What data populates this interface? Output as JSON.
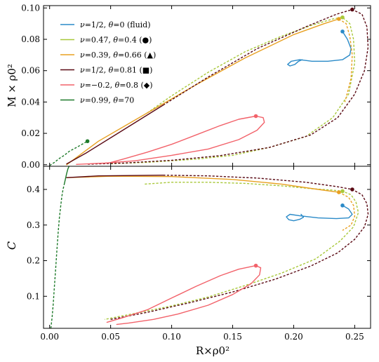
{
  "chart_data": [
    {
      "type": "line",
      "panel": "top",
      "ylabel": "M × ρ0²",
      "xlim": [
        -0.005,
        0.263
      ],
      "ylim": [
        -0.001,
        0.1015
      ],
      "yticks": [
        "0.00",
        "0.02",
        "0.04",
        "0.06",
        "0.08",
        "0.10"
      ],
      "ytick_values": [
        0.0,
        0.02,
        0.04,
        0.06,
        0.08,
        0.1
      ],
      "legend_position": "top-left",
      "series": [
        {
          "name": "ν=1/2, θ=0 (fluid)",
          "color": "#2a8ac8",
          "marker": {
            "x": 0.24,
            "y": 0.085
          },
          "solid": [
            [
              0.24,
              0.085
            ],
            [
              0.244,
              0.08
            ],
            [
              0.247,
              0.074
            ],
            [
              0.246,
              0.07
            ],
            [
              0.24,
              0.067
            ],
            [
              0.228,
              0.066
            ],
            [
              0.215,
              0.066
            ],
            [
              0.205,
              0.067
            ],
            [
              0.198,
              0.066
            ],
            [
              0.195,
              0.064
            ],
            [
              0.197,
              0.063
            ],
            [
              0.201,
              0.064
            ],
            [
              0.204,
              0.066
            ],
            [
              0.207,
              0.067
            ]
          ]
        },
        {
          "name": "ν=0.47, θ=0.4 (●)",
          "color": "#a8c83a",
          "marker": {
            "x": 0.24,
            "y": 0.094
          },
          "dashed": [
            [
              0.08,
              0.033
            ],
            [
              0.1,
              0.044
            ],
            [
              0.13,
              0.059
            ],
            [
              0.16,
              0.072
            ],
            [
              0.19,
              0.082
            ],
            [
              0.215,
              0.089
            ],
            [
              0.232,
              0.093
            ],
            [
              0.24,
              0.094
            ],
            [
              0.246,
              0.09
            ],
            [
              0.249,
              0.08
            ],
            [
              0.25,
              0.065
            ],
            [
              0.245,
              0.045
            ],
            [
              0.232,
              0.03
            ],
            [
              0.21,
              0.018
            ],
            [
              0.18,
              0.011
            ],
            [
              0.15,
              0.006
            ],
            [
              0.12,
              0.0035
            ],
            [
              0.08,
              0.0015
            ],
            [
              0.05,
              0.0006
            ]
          ]
        },
        {
          "name": "ν=0.39, θ=0.66 (▲)",
          "color": "#e8a020",
          "marker": {
            "x": 0.237,
            "y": 0.093
          },
          "dashed": [
            [
              0.237,
              0.093
            ],
            [
              0.243,
              0.09
            ],
            [
              0.246,
              0.082
            ],
            [
              0.248,
              0.07
            ],
            [
              0.247,
              0.055
            ],
            [
              0.242,
              0.04
            ]
          ],
          "solid": [
            [
              0.014,
              0.0
            ],
            [
              0.04,
              0.015
            ],
            [
              0.08,
              0.033
            ],
            [
              0.12,
              0.051
            ],
            [
              0.16,
              0.068
            ],
            [
              0.2,
              0.083
            ],
            [
              0.225,
              0.09
            ],
            [
              0.237,
              0.093
            ]
          ]
        },
        {
          "name": "ν=1/2, θ=0.81 (■)",
          "color": "#5a0a14",
          "marker": {
            "x": 0.248,
            "y": 0.099
          },
          "solid": [
            [
              0.014,
              0.0005
            ],
            [
              0.03,
              0.0075
            ],
            [
              0.06,
              0.022
            ],
            [
              0.093,
              0.038
            ]
          ],
          "dashed": [
            [
              0.093,
              0.038
            ],
            [
              0.13,
              0.056
            ],
            [
              0.17,
              0.074
            ],
            [
              0.21,
              0.088
            ],
            [
              0.235,
              0.096
            ],
            [
              0.248,
              0.099
            ],
            [
              0.256,
              0.096
            ],
            [
              0.26,
              0.088
            ],
            [
              0.261,
              0.075
            ],
            [
              0.258,
              0.06
            ],
            [
              0.25,
              0.045
            ],
            [
              0.236,
              0.03
            ],
            [
              0.214,
              0.019
            ],
            [
              0.18,
              0.011
            ],
            [
              0.14,
              0.0058
            ],
            [
              0.1,
              0.0028
            ],
            [
              0.06,
              0.001
            ],
            [
              0.03,
              0.0003
            ]
          ]
        },
        {
          "name": "ν=−0.2, θ=0.8 (◆)",
          "color": "#f2626a",
          "marker": {
            "x": 0.169,
            "y": 0.031
          },
          "solid": [
            [
              0.048,
              0.001
            ],
            [
              0.06,
              0.0035
            ],
            [
              0.08,
              0.008
            ],
            [
              0.1,
              0.013
            ],
            [
              0.12,
              0.019
            ],
            [
              0.14,
              0.025
            ],
            [
              0.155,
              0.029
            ],
            [
              0.169,
              0.031
            ],
            [
              0.175,
              0.03
            ],
            [
              0.176,
              0.027
            ],
            [
              0.17,
              0.022
            ],
            [
              0.155,
              0.016
            ],
            [
              0.13,
              0.01
            ],
            [
              0.1,
              0.006
            ],
            [
              0.07,
              0.0025
            ],
            [
              0.045,
              0.001
            ],
            [
              0.022,
              0.0002
            ]
          ]
        },
        {
          "name": "ν=0.99, θ=70",
          "color": "#1e7a2a",
          "marker": {
            "x": 0.031,
            "y": 0.015
          },
          "dashed": [
            [
              0.0,
              -0.0005
            ],
            [
              0.004,
              0.0015
            ],
            [
              0.008,
              0.004
            ],
            [
              0.012,
              0.006
            ],
            [
              0.016,
              0.0085
            ],
            [
              0.022,
              0.011
            ],
            [
              0.031,
              0.015
            ]
          ]
        }
      ],
      "legend_entries": [
        {
          "a": "ν",
          "b": "=1/2, ",
          "c": "θ",
          "d": "=0 (fluid)",
          "color": "#2a8ac8"
        },
        {
          "a": "ν",
          "b": "=0.47, ",
          "c": "θ",
          "d": "=0.4 (●)",
          "color": "#a8c83a"
        },
        {
          "a": "ν",
          "b": "=0.39, ",
          "c": "θ",
          "d": "=0.66 (▲)",
          "color": "#e8a020"
        },
        {
          "a": "ν",
          "b": "=1/2, ",
          "c": "θ",
          "d": "=0.81 (■)",
          "color": "#5a0a14"
        },
        {
          "a": "ν",
          "b": "=−0.2, ",
          "c": "θ",
          "d": "=0.8 (◆)",
          "color": "#f2626a"
        },
        {
          "a": "ν",
          "b": "=0.99, ",
          "c": "θ",
          "d": "=70",
          "color": "#1e7a2a"
        }
      ]
    },
    {
      "type": "line",
      "panel": "bottom",
      "ylabel": "C",
      "xlabel": "R×ρ0²",
      "xlim": [
        -0.005,
        0.263
      ],
      "ylim": [
        0.01,
        0.465
      ],
      "xticks": [
        "0.00",
        "0.05",
        "0.10",
        "0.15",
        "0.20",
        "0.25"
      ],
      "xtick_values": [
        0.0,
        0.05,
        0.1,
        0.15,
        0.2,
        0.25
      ],
      "yticks": [
        "0.1",
        "0.2",
        "0.3",
        "0.4"
      ],
      "ytick_values": [
        0.1,
        0.2,
        0.3,
        0.4
      ],
      "series": [
        {
          "name": "ν=1/2, θ=0 (fluid)",
          "color": "#2a8ac8",
          "marker": {
            "x": 0.24,
            "y": 0.355
          },
          "solid": [
            [
              0.24,
              0.355
            ],
            [
              0.245,
              0.345
            ],
            [
              0.248,
              0.33
            ],
            [
              0.245,
              0.32
            ],
            [
              0.235,
              0.318
            ],
            [
              0.22,
              0.32
            ],
            [
              0.205,
              0.326
            ],
            [
              0.197,
              0.33
            ],
            [
              0.194,
              0.323
            ],
            [
              0.196,
              0.315
            ],
            [
              0.2,
              0.312
            ],
            [
              0.205,
              0.316
            ],
            [
              0.208,
              0.322
            ],
            [
              0.206,
              0.33
            ]
          ]
        },
        {
          "name": "ν=0.47, θ=0.4 (●)",
          "color": "#a8c83a",
          "marker": {
            "x": 0.24,
            "y": 0.395
          },
          "dashed": [
            [
              0.078,
              0.415
            ],
            [
              0.1,
              0.42
            ],
            [
              0.13,
              0.42
            ],
            [
              0.16,
              0.417
            ],
            [
              0.19,
              0.41
            ],
            [
              0.215,
              0.402
            ],
            [
              0.232,
              0.398
            ],
            [
              0.24,
              0.395
            ],
            [
              0.247,
              0.385
            ],
            [
              0.251,
              0.365
            ],
            [
              0.253,
              0.335
            ],
            [
              0.249,
              0.295
            ],
            [
              0.238,
              0.255
            ],
            [
              0.218,
              0.205
            ],
            [
              0.19,
              0.165
            ],
            [
              0.16,
              0.13
            ],
            [
              0.13,
              0.098
            ],
            [
              0.1,
              0.073
            ],
            [
              0.07,
              0.052
            ],
            [
              0.045,
              0.035
            ]
          ]
        },
        {
          "name": "ν=0.39, θ=0.66 (▲)",
          "color": "#e8a020",
          "marker": {
            "x": 0.237,
            "y": 0.392
          },
          "solid": [
            [
              0.014,
              0.433
            ],
            [
              0.05,
              0.437
            ],
            [
              0.1,
              0.436
            ],
            [
              0.15,
              0.428
            ],
            [
              0.19,
              0.415
            ],
            [
              0.22,
              0.4
            ],
            [
              0.237,
              0.392
            ]
          ],
          "dashed": [
            [
              0.237,
              0.392
            ],
            [
              0.245,
              0.378
            ],
            [
              0.249,
              0.355
            ],
            [
              0.25,
              0.325
            ],
            [
              0.247,
              0.3
            ],
            [
              0.24,
              0.285
            ]
          ]
        },
        {
          "name": "ν=1/2, θ=0.81 (■)",
          "color": "#5a0a14",
          "marker": {
            "x": 0.248,
            "y": 0.4
          },
          "solid": [
            [
              0.014,
              0.433
            ],
            [
              0.04,
              0.438
            ],
            [
              0.093,
              0.44
            ]
          ],
          "dashed": [
            [
              0.093,
              0.44
            ],
            [
              0.13,
              0.438
            ],
            [
              0.17,
              0.432
            ],
            [
              0.21,
              0.42
            ],
            [
              0.235,
              0.408
            ],
            [
              0.248,
              0.4
            ],
            [
              0.256,
              0.385
            ],
            [
              0.26,
              0.36
            ],
            [
              0.261,
              0.33
            ],
            [
              0.258,
              0.295
            ],
            [
              0.25,
              0.26
            ],
            [
              0.236,
              0.222
            ],
            [
              0.214,
              0.185
            ],
            [
              0.185,
              0.148
            ],
            [
              0.15,
              0.112
            ],
            [
              0.115,
              0.082
            ],
            [
              0.08,
              0.055
            ],
            [
              0.05,
              0.035
            ]
          ]
        },
        {
          "name": "ν=−0.2, θ=0.8 (◆)",
          "color": "#f2626a",
          "marker": {
            "x": 0.169,
            "y": 0.186
          },
          "solid": [
            [
              0.047,
              0.027
            ],
            [
              0.06,
              0.04
            ],
            [
              0.08,
              0.062
            ],
            [
              0.1,
              0.095
            ],
            [
              0.12,
              0.128
            ],
            [
              0.14,
              0.158
            ],
            [
              0.155,
              0.176
            ],
            [
              0.169,
              0.186
            ],
            [
              0.173,
              0.18
            ],
            [
              0.172,
              0.16
            ],
            [
              0.165,
              0.135
            ],
            [
              0.15,
              0.105
            ],
            [
              0.13,
              0.075
            ],
            [
              0.105,
              0.05
            ],
            [
              0.085,
              0.035
            ],
            [
              0.065,
              0.025
            ],
            [
              0.055,
              0.021
            ]
          ]
        },
        {
          "name": "ν=0.99, θ=70",
          "color": "#1e7a2a",
          "dashed": [
            [
              0.001,
              0.01
            ],
            [
              0.002,
              0.04
            ],
            [
              0.003,
              0.08
            ],
            [
              0.004,
              0.13
            ],
            [
              0.005,
              0.18
            ],
            [
              0.006,
              0.23
            ],
            [
              0.007,
              0.28
            ],
            [
              0.008,
              0.32
            ],
            [
              0.009,
              0.35
            ],
            [
              0.01,
              0.38
            ],
            [
              0.011,
              0.4
            ],
            [
              0.012,
              0.415
            ]
          ],
          "solid": [
            [
              0.012,
              0.415
            ],
            [
              0.013,
              0.43
            ],
            [
              0.014,
              0.445
            ],
            [
              0.015,
              0.458
            ],
            [
              0.016,
              0.465
            ]
          ]
        }
      ]
    }
  ]
}
